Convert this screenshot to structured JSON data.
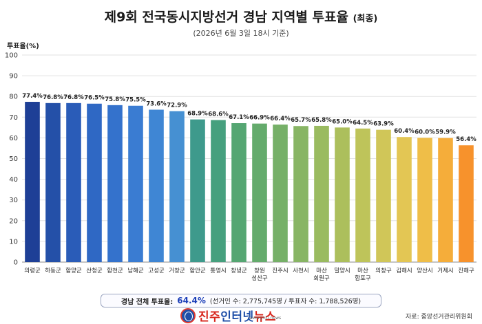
{
  "header": {
    "title": "제9회 전국동시지방선거 경남 지역별 투표율",
    "title_suffix": "(최종)",
    "subtitle": "(2026년 6월 3일 18시 기준)"
  },
  "chart_data": {
    "type": "bar",
    "ylabel": "투표율(%)",
    "ylim": [
      0,
      100
    ],
    "yticks": [
      0,
      10,
      20,
      30,
      40,
      50,
      60,
      70,
      80,
      90,
      100
    ],
    "grid": true,
    "categories": [
      "의령군",
      "하동군",
      "함양군",
      "산청군",
      "합천군",
      "남해군",
      "고성군",
      "거창군",
      "함안군",
      "통영시",
      "창녕군",
      "창원 성산구",
      "진주시",
      "사천시",
      "마산 회원구",
      "밀양시",
      "마산 합포구",
      "의창구",
      "김해시",
      "양산시",
      "거제시",
      "진해구"
    ],
    "category_lines": [
      [
        "의령군"
      ],
      [
        "하동군"
      ],
      [
        "함양군"
      ],
      [
        "산청군"
      ],
      [
        "합천군"
      ],
      [
        "남해군"
      ],
      [
        "고성군"
      ],
      [
        "거창군"
      ],
      [
        "함안군"
      ],
      [
        "통영시"
      ],
      [
        "창녕군"
      ],
      [
        "창원",
        "성산구"
      ],
      [
        "진주시"
      ],
      [
        "사천시"
      ],
      [
        "마산",
        "회원구"
      ],
      [
        "밀양시"
      ],
      [
        "마산",
        "합포구"
      ],
      [
        "의창구"
      ],
      [
        "김해시"
      ],
      [
        "양산시"
      ],
      [
        "거제시"
      ],
      [
        "진해구"
      ]
    ],
    "values": [
      77.4,
      76.8,
      76.8,
      76.5,
      75.8,
      75.5,
      73.6,
      72.9,
      68.9,
      68.6,
      67.1,
      66.9,
      66.4,
      65.7,
      65.8,
      65.0,
      64.5,
      63.9,
      60.4,
      60.0,
      59.9,
      56.4
    ],
    "value_labels": [
      "77.4%",
      "76.8%",
      "76.8%",
      "76.5%",
      "75.8%",
      "75.5%",
      "73.6%",
      "72.9%",
      "68.9%",
      "68.6%",
      "67.1%",
      "66.9%",
      "66.4%",
      "65.7%",
      "65.8%",
      "65.0%",
      "64.5%",
      "63.9%",
      "60.4%",
      "60.0%",
      "59.9%",
      "56.4%"
    ],
    "colors": [
      "#1e3f96",
      "#2450a8",
      "#2a5cb8",
      "#2f68c4",
      "#3472cc",
      "#3a7cd2",
      "#3f86d4",
      "#4690d2",
      "#3e9a8c",
      "#46a07e",
      "#55a672",
      "#64ab6c",
      "#76b068",
      "#88b564",
      "#9abb60",
      "#acbf5c",
      "#bec45a",
      "#d0c658",
      "#e3c654",
      "#efbe48",
      "#f5ad3a",
      "#f7922c"
    ]
  },
  "summary": {
    "label": "경남 전체 투표율:",
    "value": "64.4%",
    "detail": "(선거인 수: 2,775,745명 / 투표자 수: 1,788,526명)"
  },
  "logo": {
    "text_red": "진주",
    "text_blue": "인터넷",
    "text_red2": "뉴스",
    "url": "www.jinju.news"
  },
  "source": "자료: 중앙선거관리위원회"
}
